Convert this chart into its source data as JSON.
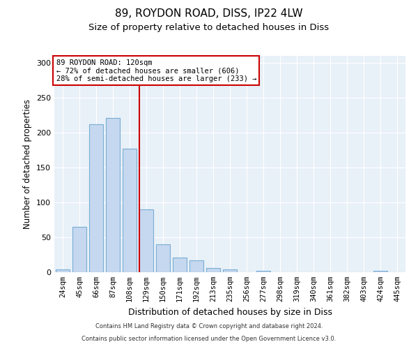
{
  "title1": "89, ROYDON ROAD, DISS, IP22 4LW",
  "title2": "Size of property relative to detached houses in Diss",
  "xlabel": "Distribution of detached houses by size in Diss",
  "ylabel": "Number of detached properties",
  "bar_labels": [
    "24sqm",
    "45sqm",
    "66sqm",
    "87sqm",
    "108sqm",
    "129sqm",
    "150sqm",
    "171sqm",
    "192sqm",
    "213sqm",
    "235sqm",
    "256sqm",
    "277sqm",
    "298sqm",
    "319sqm",
    "340sqm",
    "361sqm",
    "382sqm",
    "403sqm",
    "424sqm",
    "445sqm"
  ],
  "bar_values": [
    4,
    65,
    212,
    221,
    177,
    90,
    40,
    21,
    17,
    6,
    4,
    0,
    2,
    0,
    0,
    0,
    0,
    0,
    0,
    2,
    0
  ],
  "bar_color": "#c5d8ef",
  "bar_edge_color": "#7aadd4",
  "vline_color": "#cc0000",
  "annotation_line1": "89 ROYDON ROAD: 120sqm",
  "annotation_line2": "← 72% of detached houses are smaller (606)",
  "annotation_line3": "28% of semi-detached houses are larger (233) →",
  "annotation_box_color": "#ffffff",
  "annotation_box_edge": "#cc0000",
  "ylim": [
    0,
    310
  ],
  "yticks": [
    0,
    50,
    100,
    150,
    200,
    250,
    300
  ],
  "footer_text1": "Contains HM Land Registry data © Crown copyright and database right 2024.",
  "footer_text2": "Contains public sector information licensed under the Open Government Licence v3.0.",
  "bg_color": "#e8f0f8",
  "title1_fontsize": 11,
  "title2_fontsize": 9.5,
  "xlabel_fontsize": 9,
  "ylabel_fontsize": 8.5,
  "annotation_fontsize": 7.5,
  "tick_fontsize": 7.5
}
